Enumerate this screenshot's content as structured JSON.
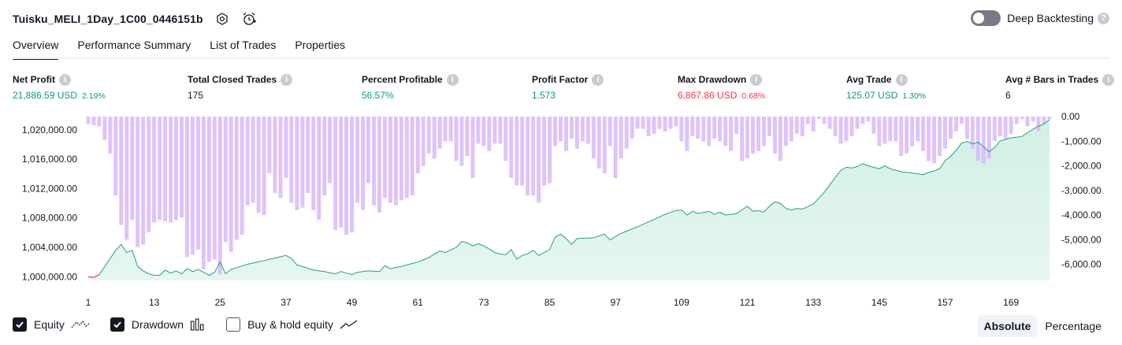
{
  "header": {
    "title": "Tuisku_MELI_1Day_1C00_0446151b",
    "deep_backtesting_label": "Deep Backtesting",
    "deep_backtesting_enabled": false
  },
  "tabs": [
    {
      "label": "Overview",
      "active": true
    },
    {
      "label": "Performance Summary",
      "active": false
    },
    {
      "label": "List of Trades",
      "active": false
    },
    {
      "label": "Properties",
      "active": false
    }
  ],
  "metrics": {
    "net_profit": {
      "label": "Net Profit",
      "value": "21,886.59 USD",
      "pct": "2.19%"
    },
    "total_closed_trades": {
      "label": "Total Closed Trades",
      "value": "175"
    },
    "percent_profitable": {
      "label": "Percent Profitable",
      "value": "56.57%"
    },
    "profit_factor": {
      "label": "Profit Factor",
      "value": "1.573"
    },
    "max_drawdown": {
      "label": "Max Drawdown",
      "value": "6,867.86 USD",
      "pct": "0.68%"
    },
    "avg_trade": {
      "label": "Avg Trade",
      "value": "125.07 USD",
      "pct": "1.30%"
    },
    "avg_bars": {
      "label": "Avg # Bars in Trades",
      "value": "6"
    }
  },
  "legend": {
    "equity": {
      "label": "Equity",
      "checked": true
    },
    "drawdown": {
      "label": "Drawdown",
      "checked": true
    },
    "buy_hold": {
      "label": "Buy & hold equity",
      "checked": false
    }
  },
  "scale_toggle": {
    "absolute_label": "Absolute",
    "percentage_label": "Percentage",
    "selected": "Absolute"
  },
  "colors": {
    "equity_line": "#26a17b",
    "equity_negative_line": "#f23645",
    "equity_fill": "#d2efe5",
    "drawdown_bar": "#d8b8fb",
    "positive": "#089981",
    "negative": "#f23645"
  },
  "chart_data": {
    "type": "area",
    "x_ticks": [
      1,
      13,
      25,
      37,
      49,
      61,
      73,
      85,
      97,
      109,
      121,
      133,
      145,
      157,
      169
    ],
    "x_range": [
      1,
      176
    ],
    "left_axis": {
      "ticks": [
        1000000,
        1004000,
        1008000,
        1012000,
        1016000,
        1020000
      ],
      "tick_labels": [
        "1,000,000.00",
        "1,004,000.00",
        "1,008,000.00",
        "1,012,000.00",
        "1,016,000.00",
        "1,020,000.00"
      ],
      "range": [
        999500,
        1021800
      ]
    },
    "right_axis": {
      "ticks": [
        0,
        -1000,
        -2000,
        -3000,
        -4000,
        -5000,
        -6000
      ],
      "tick_labels": [
        "0.00",
        "-1,000.00",
        "-2,000.00",
        "-3,000.00",
        "-4,000.00",
        "-5,000.00",
        "-6,000.00"
      ],
      "range": [
        -6650,
        0
      ]
    },
    "equity_anchors": [
      [
        1,
        1000000
      ],
      [
        2,
        999900
      ],
      [
        3,
        1000300
      ],
      [
        6,
        1003600
      ],
      [
        7,
        1004400
      ],
      [
        8,
        1003300
      ],
      [
        9,
        1003600
      ],
      [
        10,
        1001400
      ],
      [
        11,
        1000800
      ],
      [
        12,
        1000400
      ],
      [
        13,
        1000200
      ],
      [
        14,
        1000200
      ],
      [
        15,
        1000900
      ],
      [
        16,
        1000500
      ],
      [
        17,
        1000800
      ],
      [
        18,
        1000400
      ],
      [
        19,
        1001100
      ],
      [
        20,
        1000700
      ],
      [
        21,
        1001000
      ],
      [
        22,
        1000600
      ],
      [
        23,
        1000200
      ],
      [
        24,
        1000600
      ],
      [
        25,
        1002000
      ],
      [
        26,
        1000400
      ],
      [
        27,
        1001000
      ],
      [
        30,
        1001700
      ],
      [
        33,
        1002200
      ],
      [
        37,
        1002900
      ],
      [
        38,
        1002500
      ],
      [
        39,
        1001600
      ],
      [
        40,
        1001400
      ],
      [
        42,
        1000900
      ],
      [
        44,
        1000700
      ],
      [
        46,
        1000400
      ],
      [
        47,
        1000700
      ],
      [
        48,
        1000500
      ],
      [
        49,
        1000300
      ],
      [
        50,
        1000600
      ],
      [
        52,
        1000800
      ],
      [
        54,
        1000700
      ],
      [
        55,
        1001500
      ],
      [
        56,
        1001100
      ],
      [
        58,
        1001400
      ],
      [
        60,
        1001800
      ],
      [
        61,
        1002000
      ],
      [
        63,
        1002600
      ],
      [
        64,
        1003100
      ],
      [
        65,
        1003500
      ],
      [
        66,
        1003300
      ],
      [
        68,
        1004000
      ],
      [
        69,
        1004800
      ],
      [
        70,
        1004600
      ],
      [
        71,
        1004200
      ],
      [
        72,
        1004500
      ],
      [
        73,
        1004200
      ],
      [
        74,
        1003800
      ],
      [
        75,
        1003300
      ],
      [
        76,
        1003100
      ],
      [
        77,
        1003000
      ],
      [
        78,
        1003700
      ],
      [
        79,
        1002400
      ],
      [
        80,
        1002900
      ],
      [
        81,
        1003100
      ],
      [
        82,
        1003600
      ],
      [
        83,
        1002900
      ],
      [
        84,
        1003300
      ],
      [
        85,
        1003700
      ],
      [
        86,
        1005400
      ],
      [
        87,
        1005800
      ],
      [
        88,
        1005200
      ],
      [
        89,
        1004400
      ],
      [
        90,
        1005200
      ],
      [
        93,
        1005300
      ],
      [
        95,
        1005800
      ],
      [
        96,
        1005000
      ],
      [
        97,
        1005500
      ],
      [
        98,
        1005900
      ],
      [
        101,
        1006800
      ],
      [
        104,
        1007800
      ],
      [
        106,
        1008500
      ],
      [
        108,
        1009000
      ],
      [
        109,
        1009100
      ],
      [
        110,
        1008400
      ],
      [
        111,
        1008900
      ],
      [
        112,
        1008600
      ],
      [
        114,
        1008900
      ],
      [
        115,
        1008500
      ],
      [
        116,
        1008800
      ],
      [
        117,
        1008400
      ],
      [
        119,
        1008600
      ],
      [
        121,
        1009600
      ],
      [
        122,
        1008900
      ],
      [
        123,
        1009000
      ],
      [
        124,
        1008800
      ],
      [
        125,
        1009600
      ],
      [
        126,
        1010200
      ],
      [
        127,
        1010000
      ],
      [
        128,
        1009300
      ],
      [
        129,
        1009100
      ],
      [
        130,
        1009300
      ],
      [
        131,
        1009200
      ],
      [
        133,
        1009900
      ],
      [
        135,
        1011500
      ],
      [
        137,
        1013500
      ],
      [
        138,
        1014500
      ],
      [
        139,
        1014900
      ],
      [
        140,
        1014800
      ],
      [
        141,
        1015000
      ],
      [
        142,
        1015400
      ],
      [
        143,
        1015100
      ],
      [
        145,
        1014700
      ],
      [
        146,
        1015100
      ],
      [
        147,
        1014700
      ],
      [
        149,
        1014300
      ],
      [
        150,
        1014200
      ],
      [
        152,
        1014000
      ],
      [
        153,
        1013900
      ],
      [
        154,
        1014200
      ],
      [
        155,
        1014400
      ],
      [
        156,
        1014700
      ],
      [
        157,
        1015800
      ],
      [
        158,
        1016400
      ],
      [
        159,
        1017200
      ],
      [
        160,
        1018200
      ],
      [
        161,
        1018400
      ],
      [
        162,
        1018100
      ],
      [
        163,
        1018300
      ],
      [
        164,
        1017700
      ],
      [
        165,
        1017000
      ],
      [
        166,
        1017600
      ],
      [
        167,
        1018500
      ],
      [
        168,
        1018700
      ],
      [
        169,
        1018900
      ],
      [
        170,
        1019000
      ],
      [
        171,
        1019100
      ],
      [
        173,
        1020100
      ],
      [
        174,
        1020500
      ],
      [
        175,
        1020800
      ],
      [
        176,
        1021400
      ]
    ],
    "drawdown_anchors": [
      [
        1,
        -300
      ],
      [
        3,
        -400
      ],
      [
        5,
        -1500
      ],
      [
        6,
        -3200
      ],
      [
        7,
        -4400
      ],
      [
        8,
        -5000
      ],
      [
        9,
        -4200
      ],
      [
        10,
        -5300
      ],
      [
        11,
        -5200
      ],
      [
        12,
        -4700
      ],
      [
        13,
        -4300
      ],
      [
        14,
        -4200
      ],
      [
        16,
        -4300
      ],
      [
        18,
        -4100
      ],
      [
        19,
        -5700
      ],
      [
        20,
        -5600
      ],
      [
        21,
        -5400
      ],
      [
        22,
        -6200
      ],
      [
        23,
        -5900
      ],
      [
        24,
        -5800
      ],
      [
        25,
        -6400
      ],
      [
        26,
        -5100
      ],
      [
        27,
        -5500
      ],
      [
        28,
        -5000
      ],
      [
        29,
        -4800
      ],
      [
        30,
        -3600
      ],
      [
        31,
        -3500
      ],
      [
        32,
        -3900
      ],
      [
        33,
        -4000
      ],
      [
        34,
        -2300
      ],
      [
        35,
        -3100
      ],
      [
        36,
        -3300
      ],
      [
        37,
        -2500
      ],
      [
        38,
        -3500
      ],
      [
        39,
        -3800
      ],
      [
        40,
        -3700
      ],
      [
        41,
        -3100
      ],
      [
        42,
        -3800
      ],
      [
        43,
        -4200
      ],
      [
        44,
        -3200
      ],
      [
        45,
        -2700
      ],
      [
        46,
        -4600
      ],
      [
        47,
        -4500
      ],
      [
        48,
        -4800
      ],
      [
        49,
        -4700
      ],
      [
        50,
        -3500
      ],
      [
        51,
        -3800
      ],
      [
        52,
        -2700
      ],
      [
        53,
        -3600
      ],
      [
        54,
        -3900
      ],
      [
        55,
        -3300
      ],
      [
        56,
        -3500
      ],
      [
        57,
        -3600
      ],
      [
        58,
        -3400
      ],
      [
        59,
        -3300
      ],
      [
        60,
        -3200
      ],
      [
        61,
        -2300
      ],
      [
        62,
        -2000
      ],
      [
        63,
        -1500
      ],
      [
        64,
        -1700
      ],
      [
        65,
        -1300
      ],
      [
        66,
        -1000
      ],
      [
        67,
        -1000
      ],
      [
        68,
        -1800
      ],
      [
        69,
        -2000
      ],
      [
        70,
        -1600
      ],
      [
        71,
        -2500
      ],
      [
        72,
        -1100
      ],
      [
        73,
        -1200
      ],
      [
        74,
        -1400
      ],
      [
        75,
        -1100
      ],
      [
        76,
        -1100
      ],
      [
        77,
        -1800
      ],
      [
        78,
        -2500
      ],
      [
        79,
        -2800
      ],
      [
        80,
        -2800
      ],
      [
        81,
        -3200
      ],
      [
        82,
        -3200
      ],
      [
        83,
        -3500
      ],
      [
        84,
        -2800
      ],
      [
        85,
        -2700
      ],
      [
        86,
        -1200
      ],
      [
        87,
        -1000
      ],
      [
        88,
        -1400
      ],
      [
        89,
        -900
      ],
      [
        90,
        -1300
      ],
      [
        91,
        -1000
      ],
      [
        92,
        -1100
      ],
      [
        93,
        -1700
      ],
      [
        94,
        -2100
      ],
      [
        95,
        -2300
      ],
      [
        96,
        -1200
      ],
      [
        97,
        -2500
      ],
      [
        98,
        -1700
      ],
      [
        99,
        -1300
      ],
      [
        100,
        -900
      ],
      [
        101,
        -500
      ],
      [
        102,
        -500
      ],
      [
        103,
        -800
      ],
      [
        104,
        -700
      ],
      [
        105,
        -500
      ],
      [
        106,
        -600
      ],
      [
        107,
        -500
      ],
      [
        108,
        -400
      ],
      [
        109,
        -1000
      ],
      [
        110,
        -1400
      ],
      [
        111,
        -800
      ],
      [
        112,
        -900
      ],
      [
        113,
        -1000
      ],
      [
        114,
        -1200
      ],
      [
        115,
        -900
      ],
      [
        116,
        -1000
      ],
      [
        117,
        -1200
      ],
      [
        118,
        -1400
      ],
      [
        119,
        -700
      ],
      [
        120,
        -1800
      ],
      [
        121,
        -1700
      ],
      [
        122,
        -1500
      ],
      [
        123,
        -1400
      ],
      [
        124,
        -1200
      ],
      [
        125,
        -800
      ],
      [
        126,
        -1500
      ],
      [
        127,
        -1800
      ],
      [
        128,
        -1200
      ],
      [
        129,
        -1000
      ],
      [
        130,
        -700
      ],
      [
        131,
        -800
      ],
      [
        132,
        -300
      ],
      [
        133,
        -600
      ],
      [
        134,
        -100
      ],
      [
        135,
        -300
      ],
      [
        136,
        -500
      ],
      [
        137,
        -800
      ],
      [
        138,
        -1100
      ],
      [
        139,
        -1000
      ],
      [
        140,
        -800
      ],
      [
        141,
        -500
      ],
      [
        142,
        -300
      ],
      [
        143,
        -200
      ],
      [
        144,
        -700
      ],
      [
        145,
        -1200
      ],
      [
        146,
        -1100
      ],
      [
        147,
        -1000
      ],
      [
        148,
        -1000
      ],
      [
        149,
        -1600
      ],
      [
        150,
        -1500
      ],
      [
        151,
        -1200
      ],
      [
        152,
        -1000
      ],
      [
        153,
        -1400
      ],
      [
        154,
        -1800
      ],
      [
        155,
        -1900
      ],
      [
        156,
        -1600
      ],
      [
        157,
        -1300
      ],
      [
        158,
        -900
      ],
      [
        159,
        -600
      ],
      [
        160,
        -300
      ],
      [
        161,
        -900
      ],
      [
        162,
        -1300
      ],
      [
        163,
        -1800
      ],
      [
        164,
        -1900
      ],
      [
        165,
        -1700
      ],
      [
        166,
        -1000
      ],
      [
        167,
        -800
      ],
      [
        168,
        -900
      ],
      [
        169,
        -700
      ],
      [
        170,
        -300
      ],
      [
        171,
        -100
      ],
      [
        172,
        -400
      ],
      [
        173,
        -200
      ],
      [
        174,
        -600
      ],
      [
        175,
        -300
      ],
      [
        176,
        -100
      ]
    ]
  }
}
